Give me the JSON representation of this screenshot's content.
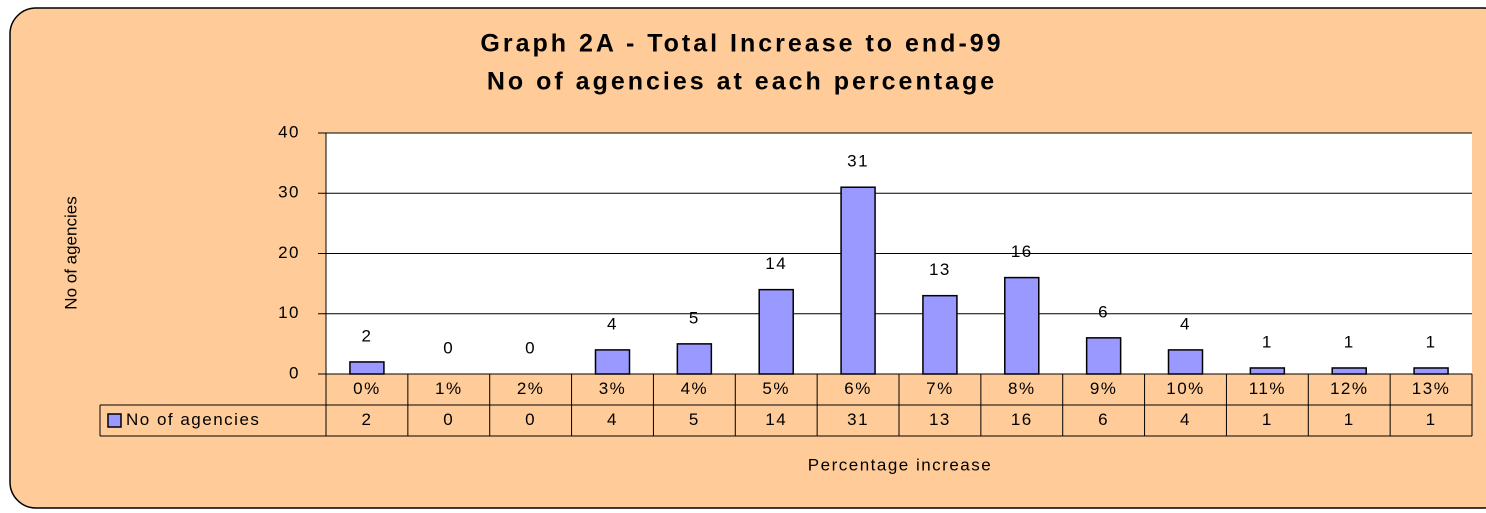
{
  "chart_data": {
    "type": "bar",
    "title": "Graph 2A - Total Increase to end-99",
    "subtitle": "No of agencies at each percentage",
    "y_label": "No of agencies",
    "x_label": "Percentage increase",
    "categories": [
      "0%",
      "1%",
      "2%",
      "3%",
      "4%",
      "5%",
      "6%",
      "7%",
      "8%",
      "9%",
      "10%",
      "11%",
      "12%",
      "13%"
    ],
    "series": [
      {
        "name": "No of agencies",
        "color": "#9999ff",
        "values": [
          2,
          0,
          0,
          4,
          5,
          14,
          31,
          13,
          16,
          6,
          4,
          1,
          1,
          1
        ]
      }
    ],
    "ylim": [
      0,
      40
    ],
    "yticks": [
      0,
      10,
      20,
      30,
      40
    ],
    "grid": true,
    "data_table": true
  }
}
